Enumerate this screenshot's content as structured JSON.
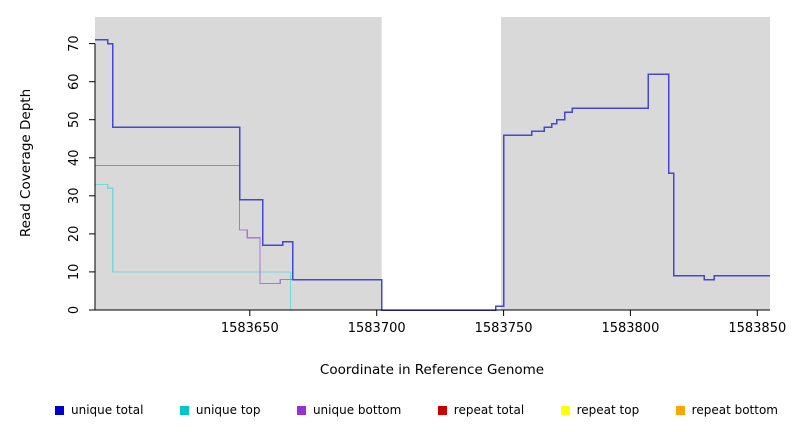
{
  "chart_data": {
    "type": "line",
    "subtype": "step-coverage",
    "title": "",
    "xlabel": "Coordinate in Reference Genome",
    "ylabel": "Read Coverage Depth",
    "xlim": [
      1583589,
      1583855
    ],
    "ylim": [
      0,
      77
    ],
    "xticks": [
      1583650,
      1583700,
      1583750,
      1583800,
      1583850
    ],
    "yticks": [
      0,
      10,
      20,
      30,
      40,
      50,
      60,
      70
    ],
    "grid": false,
    "plot_bg": "#d9d9d9",
    "gap_region": {
      "x_start": 1583702,
      "x_end": 1583749,
      "color": "#ffffff"
    },
    "series": [
      {
        "name": "unique top",
        "color": "#76d7d7",
        "width": 1.2,
        "points": [
          [
            1583589,
            33
          ],
          [
            1583594,
            32
          ],
          [
            1583596,
            10
          ],
          [
            1583666,
            0
          ],
          [
            1583855,
            0
          ]
        ]
      },
      {
        "name": "unique bottom",
        "color": "#a678d8",
        "width": 1.2,
        "points": [
          [
            1583589,
            38
          ],
          [
            1583646,
            21
          ],
          [
            1583649,
            19
          ],
          [
            1583654,
            7
          ],
          [
            1583662,
            8
          ],
          [
            1583702,
            0
          ],
          [
            1583747,
            1
          ],
          [
            1583750,
            46
          ],
          [
            1583761,
            47
          ],
          [
            1583766,
            48
          ],
          [
            1583769,
            49
          ],
          [
            1583771,
            50
          ],
          [
            1583774,
            52
          ],
          [
            1583777,
            53
          ],
          [
            1583807,
            62
          ],
          [
            1583814,
            62
          ],
          [
            1583815,
            36
          ],
          [
            1583817,
            9
          ],
          [
            1583829,
            8
          ],
          [
            1583833,
            9
          ],
          [
            1583855,
            9
          ]
        ]
      },
      {
        "name": "repeat total",
        "color": "#cd0000",
        "width": 1.2,
        "points": [
          [
            1583589,
            0
          ],
          [
            1583855,
            0
          ]
        ]
      },
      {
        "name": "repeat top",
        "color": "#ffff00",
        "width": 1.2,
        "points": [
          [
            1583589,
            0
          ],
          [
            1583855,
            0
          ]
        ]
      },
      {
        "name": "repeat bottom",
        "color": "#ffa500",
        "width": 1.2,
        "points": [
          [
            1583589,
            0
          ],
          [
            1583855,
            0
          ]
        ]
      },
      {
        "name": "unique total",
        "color": "#4545d8",
        "width": 1.5,
        "points": [
          [
            1583589,
            71
          ],
          [
            1583594,
            70
          ],
          [
            1583596,
            48
          ],
          [
            1583646,
            29
          ],
          [
            1583655,
            17
          ],
          [
            1583663,
            18
          ],
          [
            1583667,
            8
          ],
          [
            1583702,
            0
          ],
          [
            1583747,
            1
          ],
          [
            1583750,
            46
          ],
          [
            1583759,
            46
          ],
          [
            1583761,
            47
          ],
          [
            1583766,
            48
          ],
          [
            1583769,
            49
          ],
          [
            1583771,
            50
          ],
          [
            1583774,
            52
          ],
          [
            1583777,
            53
          ],
          [
            1583807,
            62
          ],
          [
            1583814,
            62
          ],
          [
            1583815,
            36
          ],
          [
            1583817,
            9
          ],
          [
            1583829,
            8
          ],
          [
            1583833,
            9
          ],
          [
            1583855,
            9
          ]
        ]
      }
    ],
    "legend": {
      "position": "bottom",
      "items": [
        {
          "label": "unique total",
          "color": "#0000cd"
        },
        {
          "label": "unique top",
          "color": "#00c5cd"
        },
        {
          "label": "unique bottom",
          "color": "#9932cc"
        },
        {
          "label": "repeat total",
          "color": "#cd0000"
        },
        {
          "label": "repeat top",
          "color": "#ffff00"
        },
        {
          "label": "repeat bottom",
          "color": "#ffa500"
        }
      ]
    }
  }
}
